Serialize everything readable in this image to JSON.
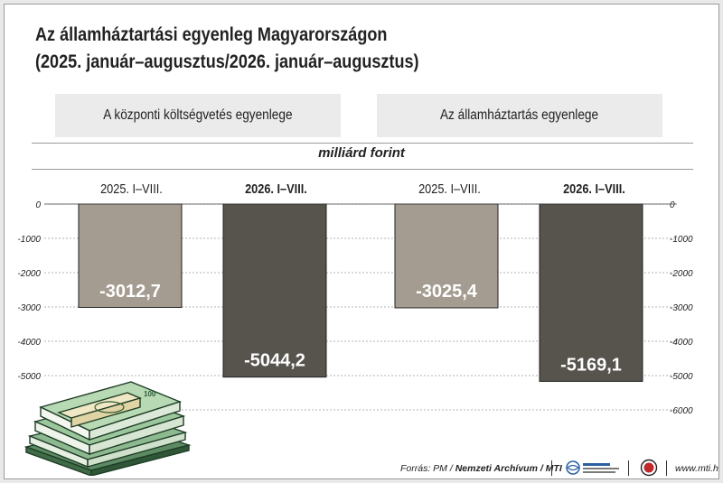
{
  "title_line1": "Az államháztartási egyenleg Magyarországon",
  "title_line2": "(2025. január–augusztus/2026. január–augusztus)",
  "unit": "milliárd forint",
  "panels": [
    {
      "label": "A központi költségvetés egyenlege"
    },
    {
      "label": "Az államháztartás egyenlege"
    }
  ],
  "categories": [
    "2025. I–VIII.",
    "2026. I–VIII.",
    "2025. I–VIII.",
    "2026. I–VIII."
  ],
  "footer": {
    "source_prefix": "Forrás: PM / ",
    "source_bold": "Nemzeti Archívum / MTI",
    "website": "www.mti.hu"
  },
  "colors": {
    "bar_2025": "#a59c91",
    "bar_2026": "#57534d",
    "bar_edge": "#222222",
    "grid": "#9a9a9a"
  },
  "chart_data": {
    "type": "bar",
    "title": "Az államháztartási egyenleg Magyarországon",
    "subtitle": "(2025. január–augusztus/2026. január–augusztus)",
    "ylabel": "milliárd forint",
    "groups": [
      "A központi költségvetés egyenlege",
      "Az államháztartás egyenlege"
    ],
    "categories": [
      "2025. I–VIII.",
      "2026. I–VIII.",
      "2025. I–VIII.",
      "2026. I–VIII."
    ],
    "values": [
      -3012.7,
      -5044.2,
      -3025.4,
      -5169.1
    ],
    "value_labels": [
      "-3012,7",
      "-5044,2",
      "-3025,4",
      "-5169,1"
    ],
    "ylim": [
      -6000,
      0
    ],
    "yticks_left": [
      0,
      -1000,
      -2000,
      -3000,
      -4000,
      -5000
    ],
    "yticks_right": [
      0,
      -1000,
      -2000,
      -3000,
      -4000,
      -5000,
      -6000
    ],
    "grid": true
  }
}
